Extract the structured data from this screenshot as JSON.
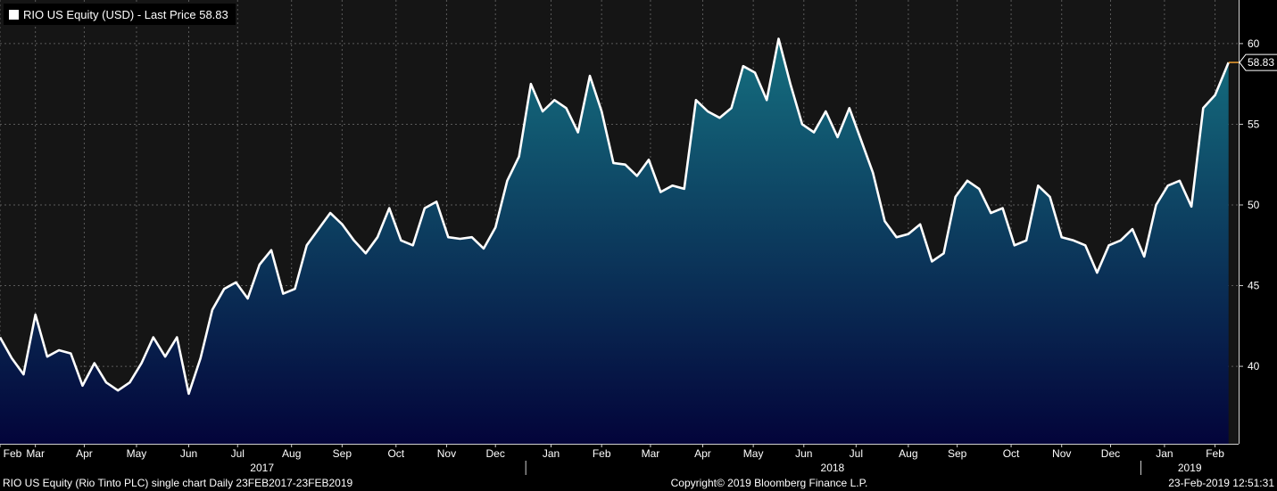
{
  "legend": {
    "text": "RIO US Equity (USD) - Last Price 58.83",
    "color": "#ffffff"
  },
  "footer": {
    "left": "RIO US Equity (Rio Tinto PLC) single chart  Daily 23FEB2017-23FEB2019",
    "center": "Copyright© 2019 Bloomberg Finance L.P.",
    "right": "23-Feb-2019 12:51:31"
  },
  "colors": {
    "background": "#000000",
    "plot_background": "#151515",
    "line": "#ffffff",
    "fill_top": "#157080",
    "fill_bottom": "#03043a",
    "last_price_marker": "#f0a030",
    "grid": "#5a5a5a"
  },
  "chart_data": {
    "type": "area",
    "title": "RIO US Equity (USD) - Last Price 58.83",
    "series": [
      {
        "name": "RIO US Equity (USD) - Last Price",
        "x": [
          "2017-02-23",
          "2017-03-02",
          "2017-03-09",
          "2017-03-16",
          "2017-03-23",
          "2017-03-30",
          "2017-04-06",
          "2017-04-13",
          "2017-04-20",
          "2017-04-27",
          "2017-05-04",
          "2017-05-11",
          "2017-05-18",
          "2017-05-25",
          "2017-06-01",
          "2017-06-08",
          "2017-06-15",
          "2017-06-22",
          "2017-06-29",
          "2017-07-06",
          "2017-07-13",
          "2017-07-20",
          "2017-07-27",
          "2017-08-03",
          "2017-08-10",
          "2017-08-17",
          "2017-08-24",
          "2017-08-31",
          "2017-09-07",
          "2017-09-14",
          "2017-09-21",
          "2017-09-28",
          "2017-10-05",
          "2017-10-12",
          "2017-10-19",
          "2017-10-26",
          "2017-11-02",
          "2017-11-09",
          "2017-11-16",
          "2017-11-23",
          "2017-11-30",
          "2017-12-07",
          "2017-12-14",
          "2017-12-21",
          "2017-12-28",
          "2018-01-04",
          "2018-01-11",
          "2018-01-18",
          "2018-01-25",
          "2018-02-01",
          "2018-02-08",
          "2018-02-15",
          "2018-02-22",
          "2018-03-01",
          "2018-03-08",
          "2018-03-15",
          "2018-03-22",
          "2018-03-29",
          "2018-04-05",
          "2018-04-12",
          "2018-04-19",
          "2018-04-26",
          "2018-05-03",
          "2018-05-10",
          "2018-05-17",
          "2018-05-24",
          "2018-05-31",
          "2018-06-07",
          "2018-06-14",
          "2018-06-21",
          "2018-06-28",
          "2018-07-05",
          "2018-07-12",
          "2018-07-19",
          "2018-07-26",
          "2018-08-02",
          "2018-08-09",
          "2018-08-16",
          "2018-08-23",
          "2018-08-30",
          "2018-09-06",
          "2018-09-13",
          "2018-09-20",
          "2018-09-27",
          "2018-10-04",
          "2018-10-11",
          "2018-10-18",
          "2018-10-25",
          "2018-11-01",
          "2018-11-08",
          "2018-11-15",
          "2018-11-22",
          "2018-11-29",
          "2018-12-06",
          "2018-12-13",
          "2018-12-20",
          "2018-12-27",
          "2019-01-03",
          "2019-01-10",
          "2019-01-17",
          "2019-01-24",
          "2019-01-31",
          "2019-02-07",
          "2019-02-14",
          "2019-02-22"
        ],
        "values": [
          41.8,
          40.5,
          39.5,
          43.2,
          40.6,
          41.0,
          40.8,
          38.8,
          40.2,
          39.0,
          38.5,
          39.0,
          40.2,
          41.8,
          40.6,
          41.8,
          38.3,
          40.5,
          43.5,
          44.8,
          45.2,
          44.2,
          46.3,
          47.2,
          44.5,
          44.8,
          47.5,
          48.5,
          49.5,
          48.8,
          47.8,
          47.0,
          48.0,
          49.8,
          47.8,
          47.5,
          49.8,
          50.2,
          48.0,
          47.9,
          48.0,
          47.3,
          48.6,
          51.5,
          53.0,
          57.5,
          55.8,
          56.5,
          56.0,
          54.5,
          58.0,
          55.8,
          52.6,
          52.5,
          51.8,
          52.8,
          50.8,
          51.2,
          51.0,
          56.5,
          55.8,
          55.4,
          56.0,
          58.6,
          58.2,
          56.5,
          60.3,
          57.5,
          55.0,
          54.5,
          55.8,
          54.2,
          56.0,
          54.0,
          52.0,
          49.0,
          48.0,
          48.2,
          48.8,
          46.5,
          47.0,
          50.5,
          51.5,
          51.0,
          49.5,
          49.8,
          47.5,
          47.8,
          51.2,
          50.5,
          48.0,
          47.8,
          47.5,
          45.8,
          47.5,
          47.8,
          48.5,
          46.8,
          50.0,
          51.2,
          51.5,
          49.9,
          56.0,
          56.8,
          58.83
        ]
      }
    ],
    "x_tick_labels": [
      "Feb",
      "Mar",
      "Apr",
      "May",
      "Jun",
      "Jul",
      "Aug",
      "Sep",
      "Oct",
      "Nov",
      "Dec",
      "Jan",
      "Feb",
      "Mar",
      "Apr",
      "May",
      "Jun",
      "Jul",
      "Aug",
      "Sep",
      "Oct",
      "Nov",
      "Dec",
      "Jan",
      "Feb"
    ],
    "x_tick_dates": [
      "2017-02-23",
      "2017-03-16",
      "2017-04-14",
      "2017-05-15",
      "2017-06-15",
      "2017-07-14",
      "2017-08-15",
      "2017-09-14",
      "2017-10-16",
      "2017-11-15",
      "2017-12-14",
      "2018-01-16",
      "2018-02-15",
      "2018-03-16",
      "2018-04-16",
      "2018-05-16",
      "2018-06-15",
      "2018-07-16",
      "2018-08-16",
      "2018-09-14",
      "2018-10-16",
      "2018-11-15",
      "2018-12-14",
      "2019-01-15",
      "2019-02-14"
    ],
    "year_labels": [
      {
        "label": "2017",
        "start": "2017-02-23",
        "end": "2017-12-31"
      },
      {
        "label": "2018",
        "start": "2018-01-01",
        "end": "2018-12-31"
      },
      {
        "label": "2019",
        "start": "2019-01-01",
        "end": "2019-02-28"
      }
    ],
    "x_range": [
      "2017-02-23",
      "2019-02-28"
    ],
    "y_ticks": [
      40,
      45,
      50,
      55,
      60
    ],
    "y_tick_labels": [
      "40",
      "45",
      "50",
      "55",
      "60"
    ],
    "ylim": [
      35.2,
      62.7
    ],
    "y_axis_side": "right",
    "grid": true,
    "last_price": {
      "value": 58.83,
      "label": "58.83"
    }
  }
}
